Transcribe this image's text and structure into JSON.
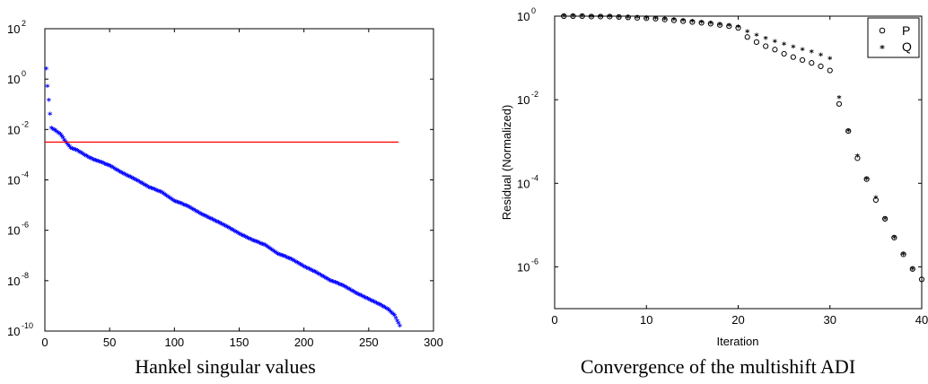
{
  "chart_data": [
    {
      "type": "scatter",
      "title": "Hankel singular values",
      "xlabel": "",
      "ylabel": "",
      "xlim": [
        0,
        300
      ],
      "ylim_log10": [
        -10,
        2
      ],
      "y_scale": "log",
      "grid": false,
      "x_ticks": [
        0,
        50,
        100,
        150,
        200,
        250,
        300
      ],
      "y_ticks": [
        {
          "base": "10",
          "exp": "2",
          "log10": 2
        },
        {
          "base": "10",
          "exp": "0",
          "log10": 0
        },
        {
          "base": "10",
          "exp": "-2",
          "log10": -2
        },
        {
          "base": "10",
          "exp": "-4",
          "log10": -4
        },
        {
          "base": "10",
          "exp": "-6",
          "log10": -6
        },
        {
          "base": "10",
          "exp": "-8",
          "log10": -8
        },
        {
          "base": "10",
          "exp": "-10",
          "log10": -10
        }
      ],
      "series": [
        {
          "marker": "*",
          "color": "#0000ff",
          "x": [
            1,
            2,
            3,
            5,
            8,
            12,
            16,
            20,
            25,
            30,
            35,
            40,
            50,
            60,
            70,
            80,
            90,
            100,
            110,
            120,
            130,
            140,
            150,
            160,
            170,
            180,
            190,
            200,
            210,
            220,
            230,
            240,
            250,
            260,
            265,
            270,
            272,
            274
          ],
          "log10": [
            0.4,
            -0.3,
            -0.85,
            -1.95,
            -2.05,
            -2.2,
            -2.5,
            -2.75,
            -2.85,
            -3.0,
            -3.15,
            -3.25,
            -3.45,
            -3.75,
            -4.0,
            -4.3,
            -4.5,
            -4.85,
            -5.05,
            -5.35,
            -5.6,
            -5.85,
            -6.15,
            -6.4,
            -6.6,
            -6.95,
            -7.15,
            -7.45,
            -7.7,
            -8.0,
            -8.2,
            -8.5,
            -8.75,
            -9.0,
            -9.15,
            -9.4,
            -9.6,
            -9.8
          ]
        },
        {
          "marker": "line",
          "color": "#ff0000",
          "x": [
            0,
            273
          ],
          "log10": [
            -2.5,
            -2.5
          ]
        }
      ]
    },
    {
      "type": "scatter",
      "title": "Convergence of the multishift ADI",
      "xlabel": "Iteration",
      "ylabel": "Residual (Normalized)",
      "xlim": [
        0,
        40
      ],
      "ylim_log10": [
        -7,
        0
      ],
      "y_scale": "log",
      "grid": false,
      "legend_position": "top-right",
      "x_ticks": [
        0,
        10,
        20,
        30,
        40
      ],
      "y_ticks": [
        {
          "base": "10",
          "exp": "0",
          "log10": 0
        },
        {
          "base": "10",
          "exp": "-2",
          "log10": -2
        },
        {
          "base": "10",
          "exp": "-4",
          "log10": -4
        },
        {
          "base": "10",
          "exp": "-6",
          "log10": -6
        }
      ],
      "series": [
        {
          "name": "P",
          "marker": "o",
          "x": [
            1,
            2,
            3,
            4,
            5,
            6,
            7,
            8,
            9,
            10,
            11,
            12,
            13,
            14,
            15,
            16,
            17,
            18,
            19,
            20,
            21,
            22,
            23,
            24,
            25,
            26,
            27,
            28,
            29,
            30,
            31,
            32,
            33,
            34,
            35,
            36,
            37,
            38,
            39,
            40
          ],
          "log10": [
            0,
            0,
            0,
            -0.01,
            -0.01,
            -0.01,
            -0.02,
            -0.03,
            -0.04,
            -0.05,
            -0.06,
            -0.08,
            -0.1,
            -0.12,
            -0.14,
            -0.16,
            -0.18,
            -0.21,
            -0.24,
            -0.28,
            -0.5,
            -0.62,
            -0.72,
            -0.8,
            -0.9,
            -0.98,
            -1.05,
            -1.12,
            -1.2,
            -1.3,
            -2.1,
            -2.75,
            -3.4,
            -3.9,
            -4.4,
            -4.85,
            -5.3,
            -5.7,
            -6.05,
            -6.3
          ]
        },
        {
          "name": "Q",
          "marker": "*",
          "x": [
            1,
            2,
            3,
            4,
            5,
            6,
            7,
            8,
            9,
            10,
            11,
            12,
            13,
            14,
            15,
            16,
            17,
            18,
            19,
            20,
            21,
            22,
            23,
            24,
            25,
            26,
            27,
            28,
            29,
            30,
            31,
            32,
            33,
            34,
            35,
            36,
            37,
            38,
            39
          ],
          "log10": [
            0,
            0,
            0,
            -0.01,
            -0.01,
            -0.01,
            -0.02,
            -0.03,
            -0.03,
            -0.04,
            -0.05,
            -0.07,
            -0.09,
            -0.11,
            -0.13,
            -0.15,
            -0.17,
            -0.2,
            -0.23,
            -0.26,
            -0.38,
            -0.46,
            -0.54,
            -0.61,
            -0.68,
            -0.74,
            -0.8,
            -0.86,
            -0.93,
            -1.02,
            -1.95,
            -2.75,
            -3.35,
            -3.9,
            -4.35,
            -4.85,
            -5.3,
            -5.7,
            -6.05
          ]
        }
      ]
    }
  ]
}
